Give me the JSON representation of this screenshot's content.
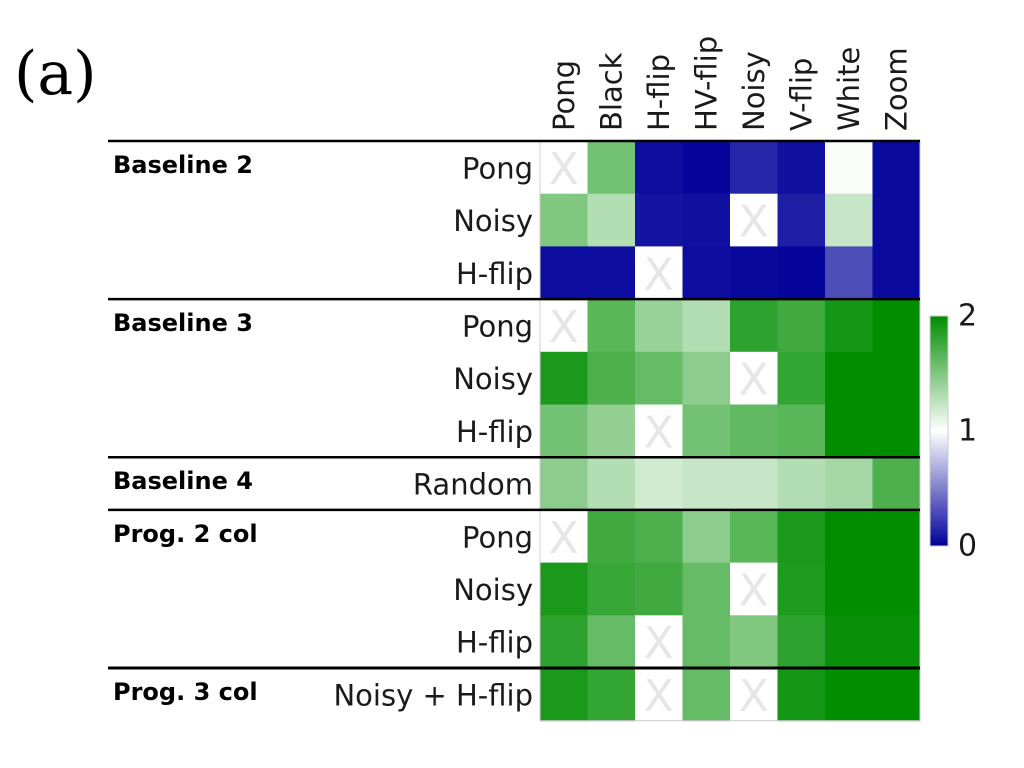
{
  "panel_label": "(a)",
  "chart_data": {
    "type": "heatmap",
    "title": "",
    "xlabel": "",
    "ylabel": "",
    "columns": [
      "Pong",
      "Black",
      "H-flip",
      "HV-flip",
      "Noisy",
      "V-flip",
      "White",
      "Zoom"
    ],
    "groups": [
      {
        "name": "Baseline 2",
        "rows": [
          {
            "label": "Pong",
            "values": [
              null,
              1.55,
              0.05,
              0.02,
              0.15,
              0.06,
              1.02,
              0.04
            ]
          },
          {
            "label": "Noisy",
            "values": [
              1.5,
              1.3,
              0.08,
              0.06,
              null,
              0.12,
              1.22,
              0.04
            ]
          },
          {
            "label": "H-flip",
            "values": [
              0.05,
              0.05,
              null,
              0.05,
              0.03,
              0.02,
              0.3,
              0.04
            ]
          }
        ]
      },
      {
        "name": "Baseline 3",
        "rows": [
          {
            "label": "Pong",
            "values": [
              null,
              1.65,
              1.4,
              1.3,
              1.82,
              1.75,
              1.92,
              2.0
            ]
          },
          {
            "label": "Noisy",
            "values": [
              1.9,
              1.7,
              1.6,
              1.45,
              null,
              1.8,
              2.0,
              2.0
            ]
          },
          {
            "label": "H-flip",
            "values": [
              1.55,
              1.42,
              null,
              1.55,
              1.62,
              1.65,
              2.0,
              2.0
            ]
          }
        ]
      },
      {
        "name": "Baseline 4",
        "rows": [
          {
            "label": "Random",
            "values": [
              1.45,
              1.3,
              1.18,
              1.22,
              1.22,
              1.3,
              1.35,
              1.7
            ]
          }
        ]
      },
      {
        "name": "Prog. 2 col",
        "rows": [
          {
            "label": "Pong",
            "values": [
              null,
              1.75,
              1.7,
              1.45,
              1.65,
              1.9,
              2.0,
              2.0
            ]
          },
          {
            "label": "Noisy",
            "values": [
              1.9,
              1.78,
              1.75,
              1.6,
              null,
              1.88,
              2.0,
              2.0
            ]
          },
          {
            "label": "H-flip",
            "values": [
              1.82,
              1.6,
              null,
              1.6,
              1.5,
              1.82,
              1.97,
              1.97
            ]
          }
        ]
      },
      {
        "name": "Prog. 3 col",
        "rows": [
          {
            "label": "Noisy + H-flip",
            "values": [
              1.9,
              1.8,
              null,
              1.6,
              null,
              1.92,
              2.0,
              2.0
            ]
          }
        ]
      }
    ],
    "missing_marker": "X",
    "colorbar": {
      "min": 0,
      "max": 2,
      "mid": 1,
      "ticks": [
        "2",
        "1",
        "0"
      ],
      "low_color": "#00009a",
      "mid_color": "#ffffff",
      "high_color": "#008e00"
    }
  }
}
